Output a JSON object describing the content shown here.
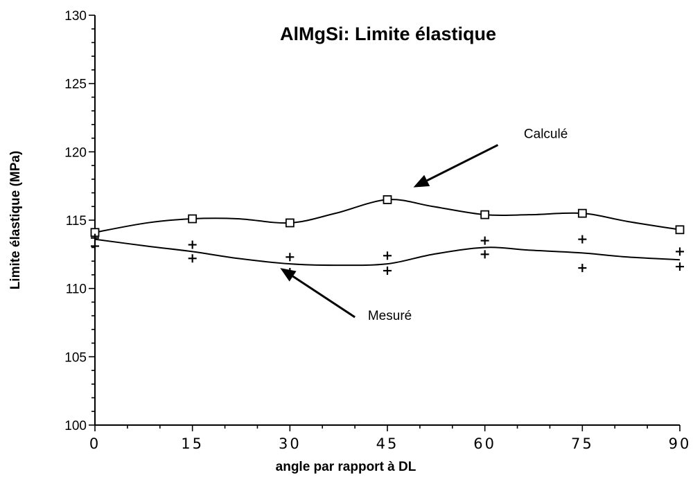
{
  "chart_data": {
    "type": "line",
    "title": "AlMgSi: Limite élastique",
    "xlabel": "angle par rapport à DL",
    "ylabel": "Limite élastique (MPa)",
    "xlim": [
      0,
      90
    ],
    "ylim": [
      100,
      130
    ],
    "x_ticks": [
      0,
      15,
      30,
      45,
      60,
      75,
      90
    ],
    "x_tick_labels": [
      "0",
      "15",
      "30",
      "45",
      "60",
      "75",
      "90"
    ],
    "y_ticks": [
      100,
      105,
      110,
      115,
      120,
      125,
      130
    ],
    "y_tick_labels": [
      "100",
      "105",
      "110",
      "115",
      "120",
      "125",
      "130"
    ],
    "grid": false,
    "series": [
      {
        "name": "Calculé",
        "marker": "square",
        "x": [
          0,
          15,
          30,
          45,
          60,
          75,
          90
        ],
        "y": [
          114.1,
          115.1,
          114.8,
          116.5,
          115.4,
          115.5,
          114.3
        ],
        "curve_x": [
          0,
          8,
          15,
          22,
          30,
          37,
          45,
          52,
          60,
          67,
          75,
          82,
          90
        ],
        "curve_y": [
          114.1,
          114.8,
          115.1,
          115.1,
          114.8,
          115.5,
          116.5,
          116.0,
          115.4,
          115.4,
          115.5,
          114.9,
          114.3
        ]
      },
      {
        "name": "Mesuré",
        "marker": "plus",
        "x": [
          0,
          0,
          15,
          15,
          30,
          30,
          45,
          45,
          60,
          60,
          75,
          75,
          90,
          90
        ],
        "y": [
          113.7,
          113.1,
          113.2,
          112.2,
          112.3,
          111.2,
          112.4,
          111.3,
          113.5,
          112.5,
          113.6,
          111.5,
          112.7,
          111.6
        ],
        "curve_x": [
          0,
          8,
          15,
          22,
          30,
          37,
          45,
          52,
          60,
          67,
          75,
          82,
          90
        ],
        "curve_y": [
          113.6,
          113.1,
          112.7,
          112.2,
          111.8,
          111.7,
          111.8,
          112.5,
          113.0,
          112.8,
          112.6,
          112.3,
          112.1
        ]
      }
    ],
    "annotations": [
      {
        "text": "Calculé",
        "target_series": "Calculé",
        "arrow_from": [
          62,
          120.5
        ],
        "arrow_to": [
          49,
          117.4
        ],
        "text_at": [
          66,
          121
        ]
      },
      {
        "text": "Mesuré",
        "target_series": "Mesuré",
        "arrow_from": [
          40,
          107.9
        ],
        "arrow_to": [
          28.5,
          111.5
        ],
        "text_at": [
          42,
          107.7
        ]
      }
    ]
  }
}
